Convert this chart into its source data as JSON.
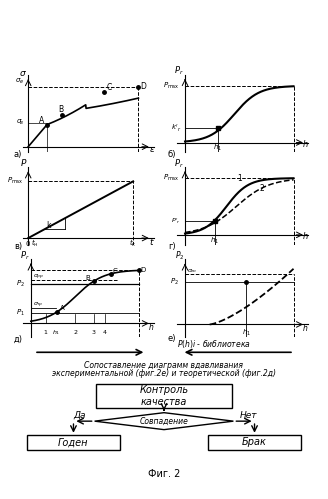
{
  "caption_line1": "Сопоставление диаграмм вдавливания",
  "caption_line2": "экспериментальной (фиг.2е) и теоретической (фиг.2д)",
  "flowchart": {
    "top_box": "Контроль\nкачества",
    "diamond": "Совпадение",
    "yes_label": "Да",
    "no_label": "Нет",
    "left_box": "Годен",
    "right_box": "Брак"
  },
  "background": "#ffffff"
}
